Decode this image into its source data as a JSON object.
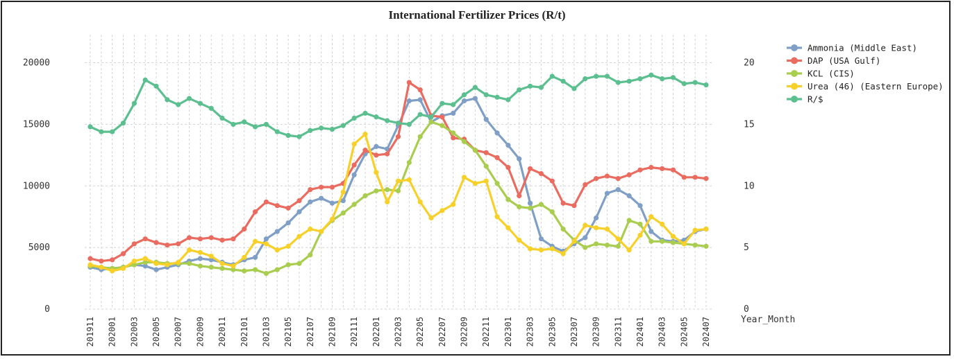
{
  "chart_data": {
    "type": "line",
    "title": "International Fertilizer Prices (R/t)",
    "xlabel": "Year_Month",
    "ylabel": "",
    "ylim": [
      0,
      22000
    ],
    "y2lim": [
      0,
      22
    ],
    "yticks": [
      "0",
      "5000",
      "10000",
      "15000",
      "20000"
    ],
    "y2ticks": [
      "0",
      "5",
      "10",
      "15",
      "20"
    ],
    "grid": true,
    "legend_position": "right",
    "categories": [
      "201911",
      "201912",
      "202001",
      "202002",
      "202003",
      "202004",
      "202005",
      "202006",
      "202007",
      "202008",
      "202009",
      "202010",
      "202011",
      "202012",
      "202101",
      "202102",
      "202103",
      "202104",
      "202105",
      "202106",
      "202107",
      "202108",
      "202109",
      "202110",
      "202111",
      "202112",
      "202201",
      "202202",
      "202203",
      "202204",
      "202205",
      "202206",
      "202207",
      "202208",
      "202209",
      "202210",
      "202211",
      "202212",
      "202301",
      "202302",
      "202303",
      "202304",
      "202305",
      "202306",
      "202307",
      "202308",
      "202309",
      "202310",
      "202311",
      "202312",
      "202401",
      "202402",
      "202403",
      "202404",
      "202405",
      "202406",
      "202407"
    ],
    "x_tick_labels": [
      "201911",
      "202001",
      "202003",
      "202005",
      "202007",
      "202009",
      "202011",
      "202101",
      "202103",
      "202105",
      "202107",
      "202109",
      "202111",
      "202201",
      "202203",
      "202205",
      "202207",
      "202209",
      "202211",
      "202301",
      "202303",
      "202305",
      "202307",
      "202309",
      "202311",
      "202401",
      "202403",
      "202405",
      "202407"
    ],
    "series": [
      {
        "name": "Ammonia (Middle East)",
        "color": "#7f9fc6",
        "axis": "left",
        "values": [
          3400,
          3200,
          3300,
          3400,
          3600,
          3500,
          3200,
          3400,
          3600,
          3900,
          4100,
          4000,
          3800,
          3600,
          4000,
          4200,
          5700,
          6300,
          7000,
          7900,
          8700,
          9000,
          8600,
          8800,
          10900,
          12600,
          13200,
          13000,
          14900,
          16900,
          17000,
          15200,
          15700,
          15900,
          16900,
          17100,
          15400,
          14300,
          13300,
          12200,
          8600,
          5700,
          5100,
          4700,
          5300,
          5800,
          7400,
          9400,
          9700,
          9200,
          8400,
          6300,
          5600,
          5500,
          5600,
          6300,
          6500
        ]
      },
      {
        "name": "DAP (USA Gulf)",
        "color": "#ea6b5f",
        "axis": "left",
        "values": [
          4100,
          3900,
          4000,
          4500,
          5300,
          5700,
          5400,
          5200,
          5300,
          5800,
          5700,
          5800,
          5600,
          5700,
          6500,
          7900,
          8700,
          8400,
          8200,
          8800,
          9700,
          9900,
          9900,
          10200,
          11700,
          12900,
          12500,
          12600,
          14000,
          18400,
          17800,
          15700,
          15600,
          13900,
          13800,
          12900,
          12700,
          12300,
          11500,
          9200,
          11400,
          11000,
          10400,
          8600,
          8400,
          10100,
          10600,
          10800,
          10600,
          10900,
          11300,
          11500,
          11400,
          11300,
          10700,
          10700,
          10600
        ]
      },
      {
        "name": "KCL (CIS)",
        "color": "#a9cd4e",
        "axis": "left",
        "values": [
          3500,
          3400,
          3300,
          3400,
          3600,
          3800,
          3800,
          3700,
          3700,
          3700,
          3500,
          3400,
          3300,
          3200,
          3100,
          3200,
          2900,
          3200,
          3600,
          3700,
          4400,
          6300,
          7200,
          7800,
          8500,
          9200,
          9600,
          9700,
          9600,
          11900,
          14000,
          15200,
          14900,
          14300,
          13600,
          12900,
          11600,
          10200,
          8900,
          8300,
          8200,
          8500,
          7900,
          6500,
          5600,
          5000,
          5300,
          5200,
          5100,
          7200,
          6900,
          5500,
          5500,
          5400,
          5300,
          5200,
          5100
        ]
      },
      {
        "name": "Urea (46) (Eastern Europe)",
        "color": "#f7d02a",
        "axis": "left",
        "values": [
          3600,
          3400,
          3100,
          3300,
          3900,
          4100,
          3700,
          3600,
          3800,
          4800,
          4600,
          4300,
          3700,
          3500,
          4200,
          5500,
          5300,
          4800,
          5100,
          5900,
          6500,
          6300,
          7300,
          9500,
          13400,
          14200,
          11100,
          8700,
          10400,
          10500,
          8700,
          7400,
          8000,
          8500,
          10700,
          10200,
          10400,
          7500,
          6600,
          5600,
          4900,
          4800,
          4900,
          4500,
          5500,
          6800,
          6600,
          6500,
          5700,
          4800,
          6000,
          7500,
          6900,
          5900,
          5300,
          6400,
          6500
        ]
      },
      {
        "name": "R/$",
        "color": "#5cbf90",
        "axis": "right",
        "values": [
          14.8,
          14.4,
          14.4,
          15.1,
          16.7,
          18.6,
          18.1,
          17.0,
          16.6,
          17.1,
          16.7,
          16.3,
          15.5,
          15.0,
          15.2,
          14.8,
          15.0,
          14.4,
          14.1,
          14.0,
          14.5,
          14.7,
          14.6,
          14.9,
          15.5,
          15.9,
          15.6,
          15.3,
          15.1,
          15.0,
          15.8,
          15.6,
          16.7,
          16.6,
          17.4,
          18.0,
          17.4,
          17.2,
          17.0,
          17.8,
          18.1,
          18.0,
          18.9,
          18.5,
          17.9,
          18.7,
          18.9,
          18.9,
          18.4,
          18.5,
          18.7,
          19.0,
          18.7,
          18.8,
          18.3,
          18.4,
          18.2
        ]
      }
    ]
  }
}
